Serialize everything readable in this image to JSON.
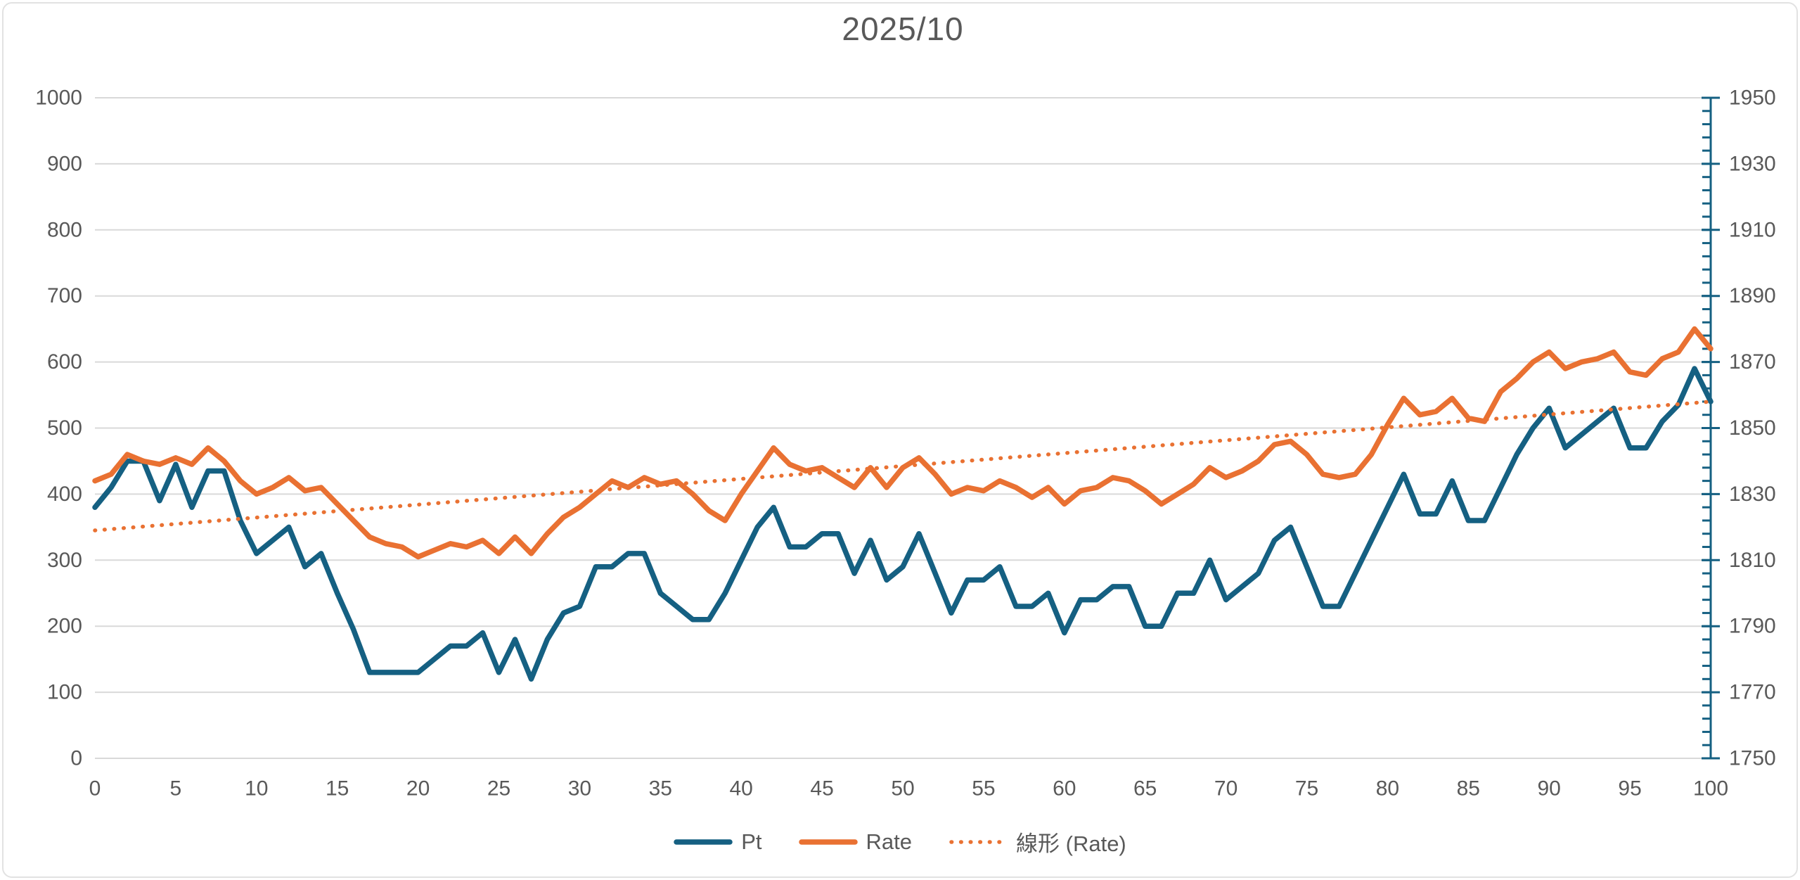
{
  "title": "2025/10",
  "colors": {
    "pt_series": "#156082",
    "rate_series": "#E97132",
    "trend": "#E97132",
    "gridline": "#D9D9D9",
    "axis_text": "#595959",
    "right_axis_line": "#156082",
    "background": "#FFFFFF"
  },
  "legend": {
    "items": [
      "Pt",
      "Rate",
      "線形 (Rate)"
    ]
  },
  "chart_data": {
    "type": "line",
    "title": "2025/10",
    "xlabel": "",
    "ylabel_left": "",
    "ylabel_right": "",
    "x_range": [
      0,
      100
    ],
    "x_ticks": [
      0,
      5,
      10,
      15,
      20,
      25,
      30,
      35,
      40,
      45,
      50,
      55,
      60,
      65,
      70,
      75,
      80,
      85,
      90,
      95,
      100
    ],
    "y_left": {
      "min": 0,
      "max": 1000,
      "step": 100,
      "ticks": [
        0,
        100,
        200,
        300,
        400,
        500,
        600,
        700,
        800,
        900,
        1000
      ]
    },
    "y_right": {
      "min": 1750,
      "max": 1950,
      "step": 20,
      "minor_step": 4,
      "ticks": [
        1750,
        1770,
        1790,
        1810,
        1830,
        1850,
        1870,
        1890,
        1910,
        1930,
        1950
      ]
    },
    "grid": true,
    "legend_position": "bottom",
    "x": [
      0,
      1,
      2,
      3,
      4,
      5,
      6,
      7,
      8,
      9,
      10,
      11,
      12,
      13,
      14,
      15,
      16,
      17,
      18,
      19,
      20,
      21,
      22,
      23,
      24,
      25,
      26,
      27,
      28,
      29,
      30,
      31,
      32,
      33,
      34,
      35,
      36,
      37,
      38,
      39,
      40,
      41,
      42,
      43,
      44,
      45,
      46,
      47,
      48,
      49,
      50,
      51,
      52,
      53,
      54,
      55,
      56,
      57,
      58,
      59,
      60,
      61,
      62,
      63,
      64,
      65,
      66,
      67,
      68,
      69,
      70,
      71,
      72,
      73,
      74,
      75,
      76,
      77,
      78,
      79,
      80,
      81,
      82,
      83,
      84,
      85,
      86,
      87,
      88,
      89,
      90,
      91,
      92,
      93,
      94,
      95,
      96,
      97,
      98,
      99,
      100
    ],
    "series": [
      {
        "name": "Pt",
        "key": "pt",
        "axis": "left",
        "color": "#156082",
        "style": "solid",
        "values": [
          380,
          410,
          450,
          450,
          390,
          445,
          380,
          435,
          435,
          360,
          310,
          330,
          350,
          290,
          310,
          250,
          195,
          130,
          130,
          130,
          130,
          150,
          170,
          170,
          190,
          130,
          180,
          120,
          180,
          220,
          230,
          290,
          290,
          310,
          310,
          250,
          230,
          210,
          210,
          250,
          300,
          350,
          380,
          320,
          320,
          340,
          340,
          280,
          330,
          270,
          290,
          340,
          280,
          220,
          270,
          270,
          290,
          230,
          230,
          250,
          190,
          240,
          240,
          260,
          260,
          200,
          200,
          250,
          250,
          300,
          240,
          260,
          280,
          330,
          350,
          290,
          230,
          230,
          280,
          330,
          380,
          430,
          370,
          370,
          420,
          360,
          360,
          410,
          460,
          500,
          530,
          470,
          490,
          510,
          530,
          470,
          470,
          510,
          535,
          590,
          540
        ]
      },
      {
        "name": "Rate",
        "key": "rate",
        "axis": "right",
        "color": "#E97132",
        "style": "solid",
        "values": [
          1834,
          1836,
          1842,
          1840,
          1839,
          1841,
          1839,
          1844,
          1840,
          1834,
          1830,
          1832,
          1835,
          1831,
          1832,
          1827,
          1822,
          1817,
          1815,
          1814,
          1811,
          1813,
          1815,
          1814,
          1816,
          1812,
          1817,
          1812,
          1818,
          1823,
          1826,
          1830,
          1834,
          1832,
          1835,
          1833,
          1834,
          1830,
          1825,
          1822,
          1830,
          1837,
          1844,
          1839,
          1837,
          1838,
          1835,
          1832,
          1838,
          1832,
          1838,
          1841,
          1836,
          1830,
          1832,
          1831,
          1834,
          1832,
          1829,
          1832,
          1827,
          1831,
          1832,
          1835,
          1834,
          1831,
          1827,
          1830,
          1833,
          1838,
          1835,
          1837,
          1840,
          1845,
          1846,
          1842,
          1836,
          1835,
          1836,
          1842,
          1851,
          1859,
          1854,
          1855,
          1859,
          1853,
          1852,
          1861,
          1865,
          1870,
          1873,
          1868,
          1870,
          1871,
          1873,
          1867,
          1866,
          1871,
          1873,
          1880,
          1874
        ]
      },
      {
        "name": "線形 (Rate)",
        "key": "trend-rate",
        "axis": "right",
        "color": "#E97132",
        "style": "dotted",
        "trend_line": {
          "x_start": 0,
          "x_end": 100,
          "y_start": 1819,
          "y_end": 1858
        }
      }
    ]
  }
}
